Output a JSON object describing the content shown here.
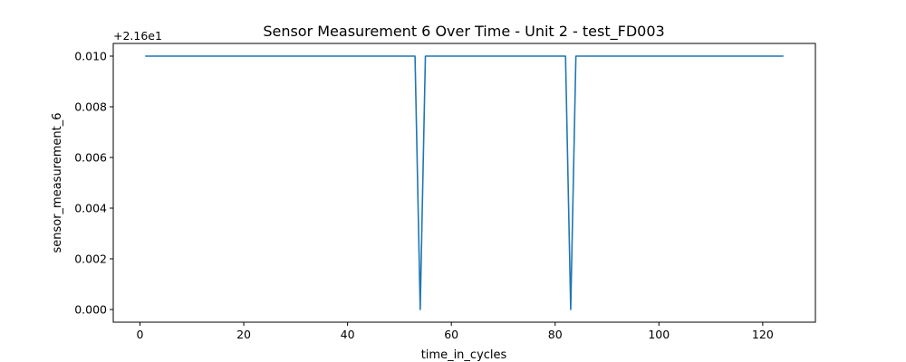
{
  "chart_data": {
    "type": "line",
    "title": "Sensor Measurement 6 Over Time - Unit 2 - test_FD003",
    "xlabel": "time_in_cycles",
    "ylabel": "sensor_measurement_6",
    "offset_label": "+2.16e1",
    "xlim": [
      -5.15,
      130.15
    ],
    "ylim": [
      -0.0005,
      0.0105
    ],
    "xticks": [
      0,
      20,
      40,
      60,
      80,
      100,
      120
    ],
    "yticks": [
      0.0,
      0.002,
      0.004,
      0.006,
      0.008,
      0.01
    ],
    "ytick_labels": [
      "0.000",
      "0.002",
      "0.004",
      "0.006",
      "0.008",
      "0.010"
    ],
    "grid": false,
    "series": [
      {
        "color": "#1f77b4",
        "points": [
          [
            1,
            0.01
          ],
          [
            53,
            0.01
          ],
          [
            54,
            0.0
          ],
          [
            55,
            0.01
          ],
          [
            82,
            0.01
          ],
          [
            83,
            0.0
          ],
          [
            84,
            0.01
          ],
          [
            124,
            0.01
          ]
        ]
      }
    ]
  }
}
